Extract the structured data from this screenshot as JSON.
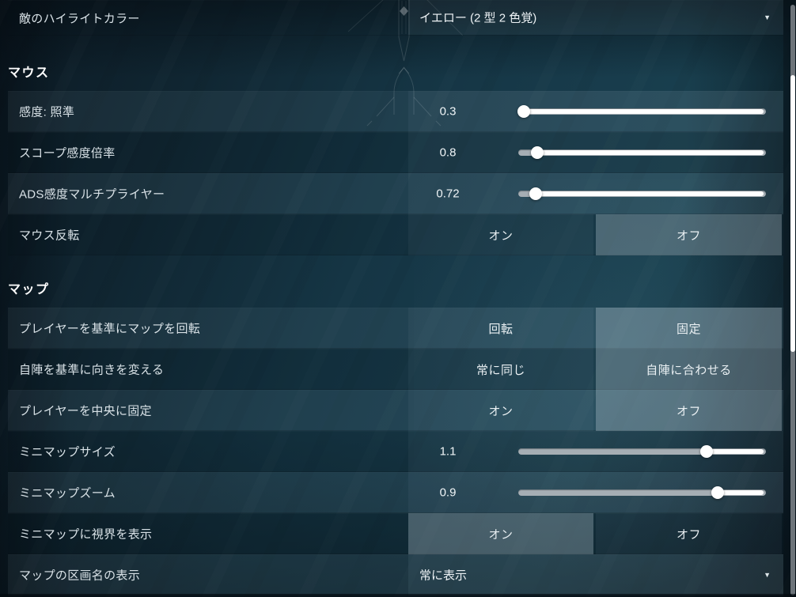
{
  "colors": {
    "slider_track": "#a6aeb4",
    "slider_fill": "#ffffff",
    "scrollbar_track": "#6d747a",
    "scrollbar_thumb": "#ffffff",
    "selected_toggle": "rgba(199,216,226,0.30)"
  },
  "icons": {
    "caret": "▼"
  },
  "enemy_highlight": {
    "label": "敵のハイライトカラー",
    "value": "イエロー (2 型 2 色覚)"
  },
  "sections": [
    {
      "title": "マウス",
      "rows": [
        {
          "type": "slider",
          "label": "感度: 照準",
          "value": "0.3",
          "pct": 2.3
        },
        {
          "type": "slider",
          "label": "スコープ感度倍率",
          "value": "0.8",
          "pct": 7.8
        },
        {
          "type": "slider",
          "label": "ADS感度マルチプライヤー",
          "value": "0.72",
          "pct": 6.9
        },
        {
          "type": "toggle",
          "label": "マウス反転",
          "options": [
            "オン",
            "オフ"
          ],
          "selected": 1
        }
      ]
    },
    {
      "title": "マップ",
      "rows": [
        {
          "type": "toggle",
          "label": "プレイヤーを基準にマップを回転",
          "options": [
            "回転",
            "固定"
          ],
          "selected": 1
        },
        {
          "type": "toggle",
          "label": "自陣を基準に向きを変える",
          "options": [
            "常に同じ",
            "自陣に合わせる"
          ],
          "selected": 1
        },
        {
          "type": "toggle",
          "label": "プレイヤーを中央に固定",
          "options": [
            "オン",
            "オフ"
          ],
          "selected": 1
        },
        {
          "type": "slider",
          "label": "ミニマップサイズ",
          "value": "1.1",
          "pct": 76.0
        },
        {
          "type": "slider",
          "label": "ミニマップズーム",
          "value": "0.9",
          "pct": 80.5
        },
        {
          "type": "toggle",
          "label": "ミニマップに視界を表示",
          "options": [
            "オン",
            "オフ"
          ],
          "selected": 0
        },
        {
          "type": "dropdown",
          "label": "マップの区画名の表示",
          "value": "常に表示"
        }
      ]
    }
  ]
}
